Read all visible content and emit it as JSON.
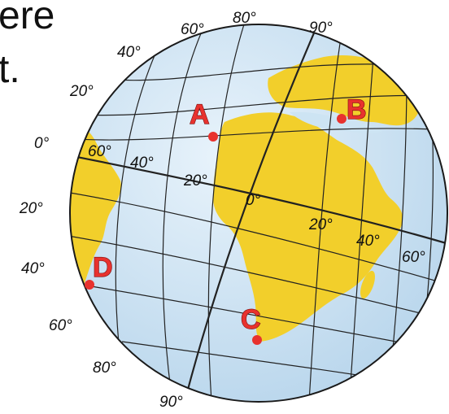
{
  "fragment_text": [
    "ere",
    "t."
  ],
  "outer_labels": [
    "60°",
    "80°",
    "90°",
    "40°",
    "20°",
    "0°",
    "20°",
    "40°",
    "60°",
    "80°",
    "90°"
  ],
  "inner_labels": [
    "60°",
    "40°",
    "20°",
    "0°",
    "20°",
    "40°",
    "60°"
  ],
  "points": [
    "A",
    "B",
    "C",
    "D"
  ],
  "colors": {
    "ocean": "#cde4f3",
    "land": "#f2cf2b",
    "grid": "#222222",
    "point": "#e8322e"
  }
}
